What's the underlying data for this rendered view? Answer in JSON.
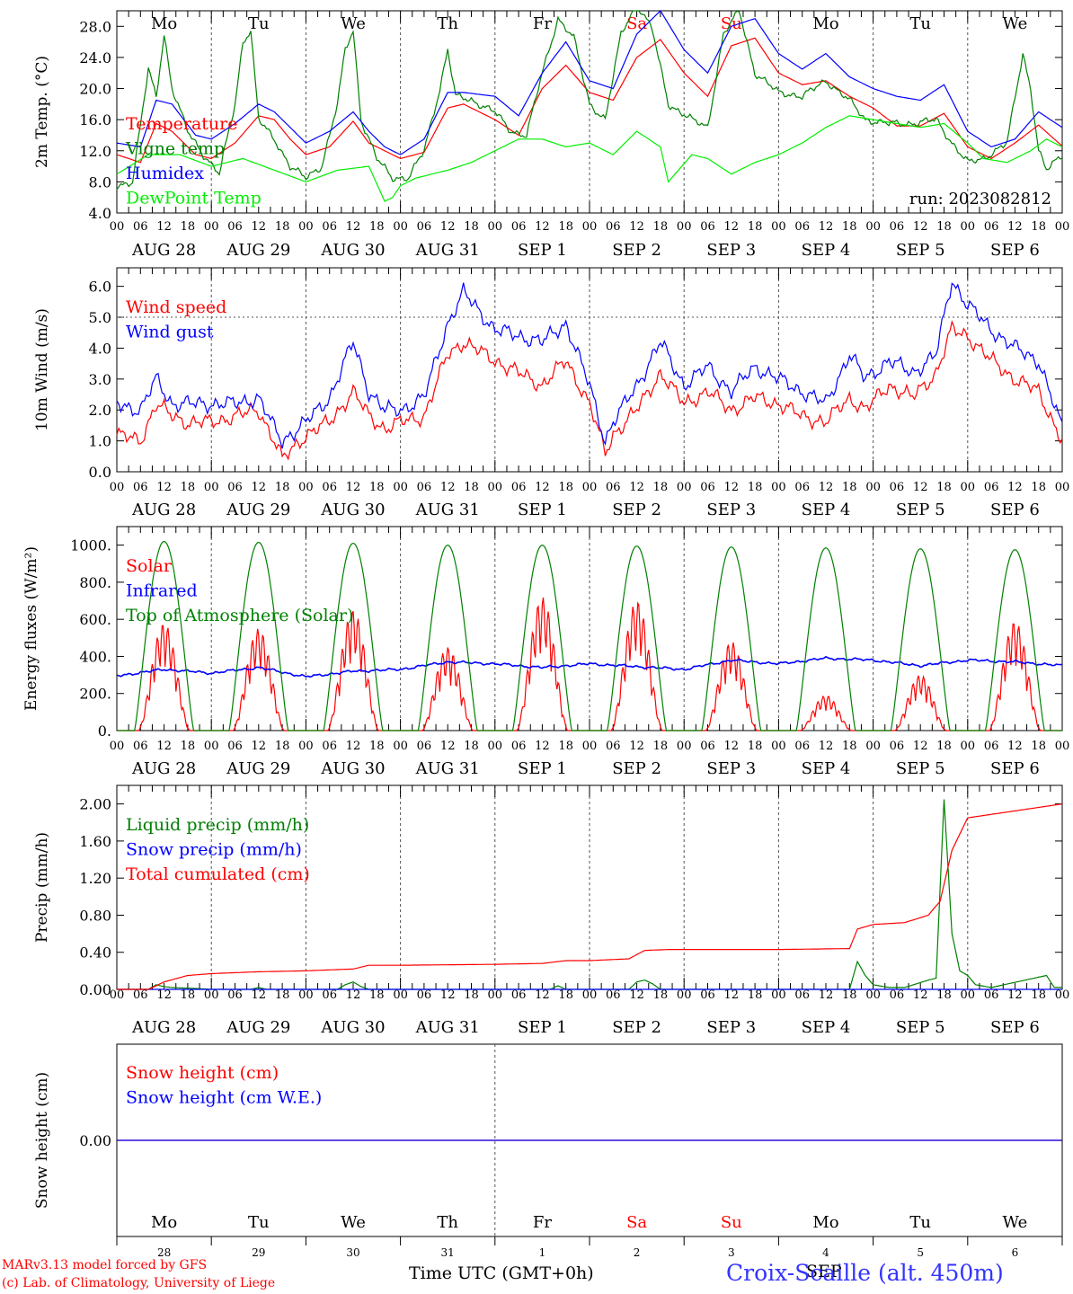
{
  "footer": {
    "model_credit": "MARv3.13 model forced by GFS",
    "lab_credit": "(c) Lab. of Climatology, University of Liege",
    "time_axis_title": "Time UTC (GMT+0h)",
    "month_label": "SEP",
    "station": "Croix-Scaille (alt. 450m)"
  },
  "colors": {
    "temperature": "#ff0000",
    "vigne_temp": "#008000",
    "humidex": "#0000ff",
    "dewpoint": "#00ee00",
    "toa_solar": "#008000",
    "grid_dash": "#555555"
  },
  "chart_data": [
    {
      "id": "temperature",
      "type": "line",
      "run_label": "run: 2023082812",
      "ylabel": "2m Temp. (°C)",
      "ylim": [
        4,
        30
      ],
      "yticks": [
        "4.0",
        "8.0",
        "12.0",
        "16.0",
        "20.0",
        "24.0",
        "28.0"
      ],
      "ytick_values": [
        4,
        8,
        12,
        16,
        20,
        24,
        28
      ],
      "day_names": [
        "Mo",
        "Tu",
        "We",
        "Th",
        "Fr",
        "Sa",
        "Su",
        "Mo",
        "Tu",
        "We"
      ],
      "weekend_color": "#ff0000",
      "hour_ticks": [
        "00",
        "06",
        "12",
        "18"
      ],
      "date_labels": [
        "AUG 28",
        "AUG 29",
        "AUG 30",
        "AUG 31",
        "SEP  1",
        "SEP  2",
        "SEP  3",
        "SEP  4",
        "SEP  5",
        "SEP  6"
      ],
      "series": [
        {
          "name": "Temperature",
          "color": "#ff0000",
          "x_hours": [
            0,
            6,
            10,
            14,
            20,
            24,
            30,
            36,
            40,
            44,
            48,
            54,
            60,
            64,
            68,
            72,
            78,
            84,
            88,
            96,
            102,
            108,
            114,
            120,
            126,
            132,
            138,
            144,
            150,
            156,
            162,
            168,
            174,
            180,
            186,
            192,
            198,
            204,
            210,
            216,
            222,
            228,
            234,
            240
          ],
          "values": [
            11.5,
            10.5,
            15.5,
            14.5,
            11.5,
            11.0,
            13.0,
            16.5,
            16.0,
            13.5,
            11.5,
            12.5,
            15.8,
            13.0,
            12.0,
            11.0,
            11.8,
            17.5,
            18.0,
            16.0,
            14.0,
            20.0,
            23.0,
            19.5,
            18.5,
            24.0,
            26.3,
            22.0,
            19.0,
            25.5,
            26.5,
            22.0,
            20.5,
            21.0,
            19.0,
            17.5,
            15.2,
            15.2,
            16.8,
            12.5,
            11.0,
            13.0,
            15.3,
            12.6
          ]
        },
        {
          "name": "Vigne temp",
          "color": "#008000",
          "x_hours": [
            0,
            4,
            8,
            10,
            12,
            14,
            18,
            22,
            26,
            30,
            32,
            34,
            36,
            40,
            44,
            48,
            52,
            56,
            58,
            60,
            62,
            66,
            70,
            74,
            78,
            82,
            84,
            86,
            90,
            96,
            100,
            104,
            108,
            112,
            116,
            120,
            124,
            128,
            132,
            136,
            140,
            146,
            150,
            154,
            158,
            162,
            168,
            174,
            180,
            186,
            190,
            196,
            202,
            208,
            212,
            216,
            220,
            226,
            230,
            232,
            234,
            236,
            240
          ],
          "values": [
            7.5,
            8.0,
            22.5,
            19.0,
            27.0,
            20.0,
            14.5,
            11.5,
            9.0,
            18.0,
            26.0,
            27.5,
            16.0,
            13.5,
            10.0,
            8.5,
            10.0,
            18.0,
            25.0,
            27.5,
            16.0,
            11.0,
            8.5,
            8.5,
            12.0,
            20.0,
            25.0,
            19.0,
            18.5,
            17.0,
            14.5,
            14.0,
            22.0,
            29.0,
            26.5,
            18.0,
            16.0,
            27.0,
            31.0,
            27.5,
            18.0,
            16.0,
            15.0,
            27.0,
            30.0,
            22.0,
            19.5,
            19.0,
            21.0,
            18.5,
            16.0,
            15.5,
            15.5,
            16.0,
            13.0,
            10.5,
            11.0,
            13.0,
            24.5,
            20.0,
            12.0,
            9.5,
            11.5
          ]
        },
        {
          "name": "Humidex",
          "color": "#0000ff",
          "x_hours": [
            0,
            6,
            10,
            14,
            20,
            24,
            30,
            36,
            40,
            44,
            48,
            54,
            60,
            64,
            68,
            72,
            78,
            84,
            88,
            96,
            102,
            108,
            114,
            120,
            126,
            132,
            138,
            144,
            150,
            156,
            162,
            168,
            174,
            180,
            186,
            192,
            198,
            204,
            210,
            216,
            222,
            228,
            234,
            240
          ],
          "values": [
            13.0,
            12.5,
            18.5,
            18.0,
            14.0,
            13.5,
            15.5,
            18.0,
            17.0,
            15.0,
            13.0,
            14.5,
            17.0,
            14.5,
            12.5,
            11.5,
            13.5,
            19.5,
            19.5,
            19.0,
            16.5,
            22.0,
            26.0,
            21.0,
            20.0,
            27.0,
            30.0,
            25.0,
            22.0,
            28.0,
            29.0,
            24.5,
            22.5,
            24.5,
            21.5,
            20.0,
            19.0,
            18.5,
            20.5,
            14.5,
            12.5,
            13.5,
            17.0,
            15.0
          ]
        },
        {
          "name": "DewPoint Temp",
          "color": "#00ee00",
          "x_hours": [
            0,
            8,
            16,
            24,
            32,
            40,
            48,
            56,
            64,
            68,
            70,
            72,
            76,
            84,
            90,
            96,
            102,
            108,
            114,
            120,
            126,
            132,
            138,
            140,
            146,
            150,
            156,
            162,
            168,
            174,
            180,
            186,
            192,
            198,
            204,
            210,
            216,
            220,
            226,
            232,
            236,
            240
          ],
          "values": [
            9.0,
            11.5,
            11.5,
            10.0,
            11.0,
            9.5,
            8.0,
            9.5,
            10.0,
            5.5,
            6.0,
            7.5,
            8.5,
            9.5,
            10.5,
            12.0,
            13.5,
            13.5,
            12.5,
            13.0,
            11.5,
            14.5,
            12.5,
            8.0,
            11.5,
            11.0,
            9.0,
            10.5,
            11.5,
            13.0,
            15.0,
            16.5,
            16.0,
            15.5,
            15.0,
            15.5,
            13.0,
            11.0,
            10.5,
            12.0,
            13.5,
            12.5
          ]
        }
      ]
    },
    {
      "id": "wind",
      "type": "line",
      "ylabel": "10m Wind (m/s)",
      "ylim": [
        0,
        6.6
      ],
      "yticks": [
        "0.0",
        "1.0",
        "2.0",
        "3.0",
        "4.0",
        "5.0",
        "6.0"
      ],
      "ytick_values": [
        0,
        1,
        2,
        3,
        4,
        5,
        6
      ],
      "reference_line": 5.0,
      "hour_ticks": [
        "00",
        "06",
        "12",
        "18"
      ],
      "date_labels": [
        "AUG 28",
        "AUG 29",
        "AUG 30",
        "AUG 31",
        "SEP  1",
        "SEP  2",
        "SEP  3",
        "SEP  4",
        "SEP  5",
        "SEP  6"
      ],
      "series": [
        {
          "name": "Wind speed",
          "color": "#ff0000",
          "x_hours": [
            0,
            6,
            10,
            14,
            18,
            24,
            30,
            36,
            40,
            42,
            48,
            54,
            60,
            64,
            68,
            72,
            78,
            84,
            88,
            96,
            102,
            108,
            114,
            120,
            124,
            126,
            132,
            138,
            144,
            150,
            156,
            162,
            168,
            174,
            180,
            186,
            190,
            196,
            202,
            208,
            212,
            216,
            222,
            228,
            234,
            240
          ],
          "values": [
            1.2,
            1.0,
            2.2,
            1.8,
            1.6,
            1.6,
            1.8,
            2.0,
            1.0,
            0.4,
            1.2,
            1.6,
            2.6,
            1.8,
            1.4,
            1.6,
            1.8,
            3.8,
            4.2,
            3.6,
            3.2,
            2.8,
            3.6,
            2.2,
            0.6,
            1.2,
            2.0,
            3.2,
            2.2,
            2.6,
            2.0,
            2.4,
            2.2,
            1.8,
            1.6,
            2.4,
            2.0,
            2.8,
            2.4,
            3.2,
            4.6,
            4.4,
            3.6,
            3.0,
            2.6,
            1.0
          ]
        },
        {
          "name": "Wind gust",
          "color": "#0000ff",
          "x_hours": [
            0,
            6,
            10,
            14,
            18,
            24,
            30,
            36,
            40,
            42,
            48,
            54,
            60,
            64,
            68,
            72,
            78,
            84,
            88,
            96,
            102,
            108,
            114,
            120,
            124,
            126,
            132,
            138,
            144,
            150,
            156,
            162,
            168,
            174,
            180,
            186,
            190,
            196,
            202,
            208,
            212,
            216,
            222,
            228,
            234,
            240
          ],
          "values": [
            2.2,
            2.0,
            3.0,
            2.2,
            2.2,
            2.2,
            2.2,
            2.4,
            1.4,
            1.0,
            1.6,
            2.4,
            4.2,
            2.6,
            2.0,
            2.0,
            2.4,
            4.8,
            5.8,
            4.6,
            4.4,
            4.2,
            4.8,
            2.8,
            1.0,
            1.6,
            2.8,
            4.2,
            2.8,
            3.4,
            2.6,
            3.4,
            3.0,
            2.6,
            2.2,
            3.8,
            3.0,
            3.6,
            3.2,
            3.8,
            6.2,
            5.4,
            4.6,
            4.0,
            3.6,
            1.4
          ]
        }
      ]
    },
    {
      "id": "energy",
      "type": "line",
      "ylabel": "Energy fluxes (W/m²)",
      "ylim": [
        0,
        1100
      ],
      "yticks": [
        "0.",
        "200.",
        "400.",
        "600.",
        "800.",
        "1000."
      ],
      "ytick_values": [
        0,
        200,
        400,
        600,
        800,
        1000
      ],
      "hour_ticks": [
        "00",
        "06",
        "12",
        "18"
      ],
      "date_labels": [
        "AUG 28",
        "AUG 29",
        "AUG 30",
        "AUG 31",
        "SEP  1",
        "SEP  2",
        "SEP  3",
        "SEP  4",
        "SEP  5",
        "SEP  6"
      ],
      "series": [
        {
          "name": "Solar",
          "color": "#ff0000",
          "daily_peaks": [
            580,
            550,
            650,
            450,
            720,
            700,
            480,
            190,
            300,
            590
          ]
        },
        {
          "name": "Infrared",
          "color": "#0000ff",
          "x_hours": [
            0,
            12,
            24,
            36,
            48,
            60,
            72,
            84,
            96,
            108,
            120,
            132,
            144,
            156,
            168,
            180,
            192,
            204,
            216,
            228,
            240
          ],
          "values": [
            295,
            330,
            310,
            340,
            290,
            320,
            330,
            370,
            360,
            340,
            360,
            345,
            330,
            380,
            360,
            390,
            380,
            350,
            380,
            370,
            350
          ]
        },
        {
          "name": "Top of Atmosphere (Solar)",
          "color": "#008000",
          "daily_peaks": [
            1020,
            1015,
            1010,
            1000,
            1000,
            995,
            990,
            985,
            980,
            975
          ]
        }
      ]
    },
    {
      "id": "precip",
      "type": "line",
      "ylabel": "Precip (mm/h)",
      "ylim": [
        0,
        2.2
      ],
      "yticks": [
        "0.00",
        "0.40",
        "0.80",
        "1.20",
        "1.60",
        "2.00"
      ],
      "ytick_values": [
        0,
        0.4,
        0.8,
        1.2,
        1.6,
        2.0
      ],
      "hour_ticks": [
        "00",
        "06",
        "12",
        "18"
      ],
      "date_labels": [
        "AUG 28",
        "AUG 29",
        "AUG 30",
        "AUG 31",
        "SEP  1",
        "SEP  2",
        "SEP  3",
        "SEP  4",
        "SEP  5",
        "SEP  6"
      ],
      "series": [
        {
          "name": "Liquid precip (mm/h)",
          "color": "#008000",
          "x_hours": [
            0,
            8,
            10,
            12,
            14,
            20,
            24,
            34,
            36,
            38,
            56,
            58,
            60,
            62,
            64,
            110,
            112,
            114,
            130,
            132,
            134,
            136,
            138,
            186,
            188,
            190,
            192,
            196,
            200,
            206,
            208,
            210,
            212,
            214,
            216,
            218,
            222,
            236,
            238,
            240
          ],
          "values": [
            0,
            0,
            0.05,
            0.03,
            0.02,
            0.01,
            0,
            0,
            0.02,
            0,
            0,
            0.05,
            0.08,
            0.03,
            0,
            0,
            0.04,
            0,
            0,
            0.08,
            0.1,
            0.06,
            0,
            0,
            0.3,
            0.15,
            0.05,
            0.02,
            0.02,
            0.1,
            0.12,
            2.05,
            0.6,
            0.2,
            0.15,
            0.05,
            0.02,
            0.15,
            0.02,
            0.02
          ]
        },
        {
          "name": "Snow precip (mm/h)",
          "color": "#0000ff",
          "x_hours": [
            0,
            240
          ],
          "values": [
            0,
            0
          ]
        },
        {
          "name": "Total cumulated (cm)",
          "color": "#ff0000",
          "x_hours": [
            0,
            8,
            12,
            18,
            24,
            36,
            48,
            60,
            64,
            72,
            96,
            108,
            114,
            120,
            130,
            134,
            140,
            168,
            186,
            188,
            192,
            200,
            206,
            209,
            212,
            216,
            240
          ],
          "values": [
            0,
            0,
            0.08,
            0.15,
            0.17,
            0.19,
            0.2,
            0.22,
            0.26,
            0.26,
            0.27,
            0.28,
            0.31,
            0.31,
            0.33,
            0.42,
            0.43,
            0.43,
            0.44,
            0.65,
            0.7,
            0.72,
            0.8,
            0.95,
            1.5,
            1.85,
            2.0
          ]
        }
      ]
    },
    {
      "id": "snow",
      "type": "line",
      "ylabel": "Snow height (cm)",
      "ylim": [
        -1,
        1
      ],
      "yticks": [
        "0.00"
      ],
      "ytick_values": [
        0
      ],
      "day_names": [
        "Mo",
        "Tu",
        "We",
        "Th",
        "Fr",
        "Sa",
        "Su",
        "Mo",
        "Tu",
        "We"
      ],
      "weekend_color": "#ff0000",
      "day_numbers": [
        "28",
        "29",
        "30",
        "31",
        "1",
        "2",
        "3",
        "4",
        "5",
        "6"
      ],
      "series": [
        {
          "name": "Snow height (cm)",
          "color": "#ff0000",
          "x_hours": [
            0,
            240
          ],
          "values": [
            0,
            0
          ]
        },
        {
          "name": "Snow height (cm W.E.)",
          "color": "#0000ff",
          "x_hours": [
            0,
            240
          ],
          "values": [
            0,
            0
          ]
        }
      ]
    }
  ]
}
